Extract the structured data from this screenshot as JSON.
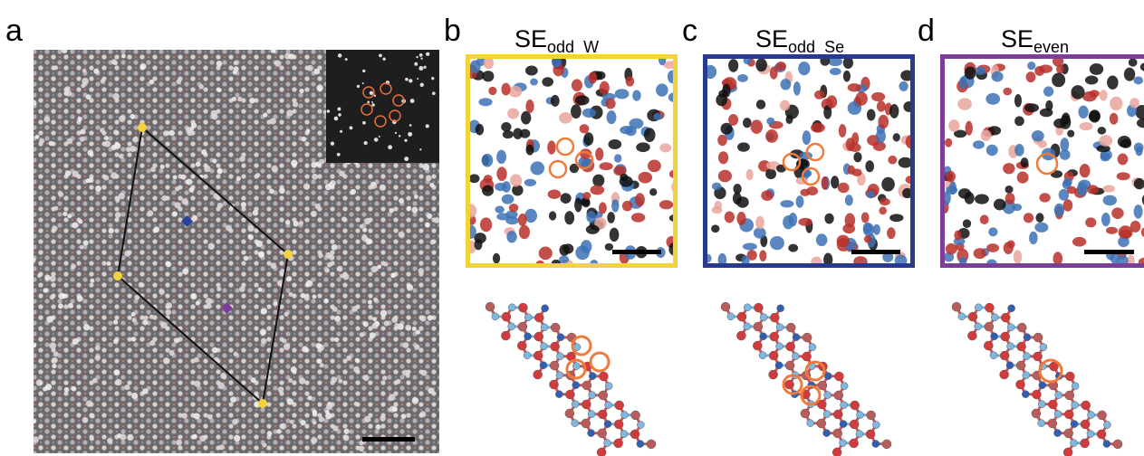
{
  "panels": [
    {
      "label": "a"
    },
    {
      "label": "b",
      "title": "SE",
      "subscript": "odd_W"
    },
    {
      "label": "c",
      "title": "SE",
      "subscript": "odd_Se"
    },
    {
      "label": "d",
      "title": "SE",
      "subscript": "even"
    }
  ]
}
